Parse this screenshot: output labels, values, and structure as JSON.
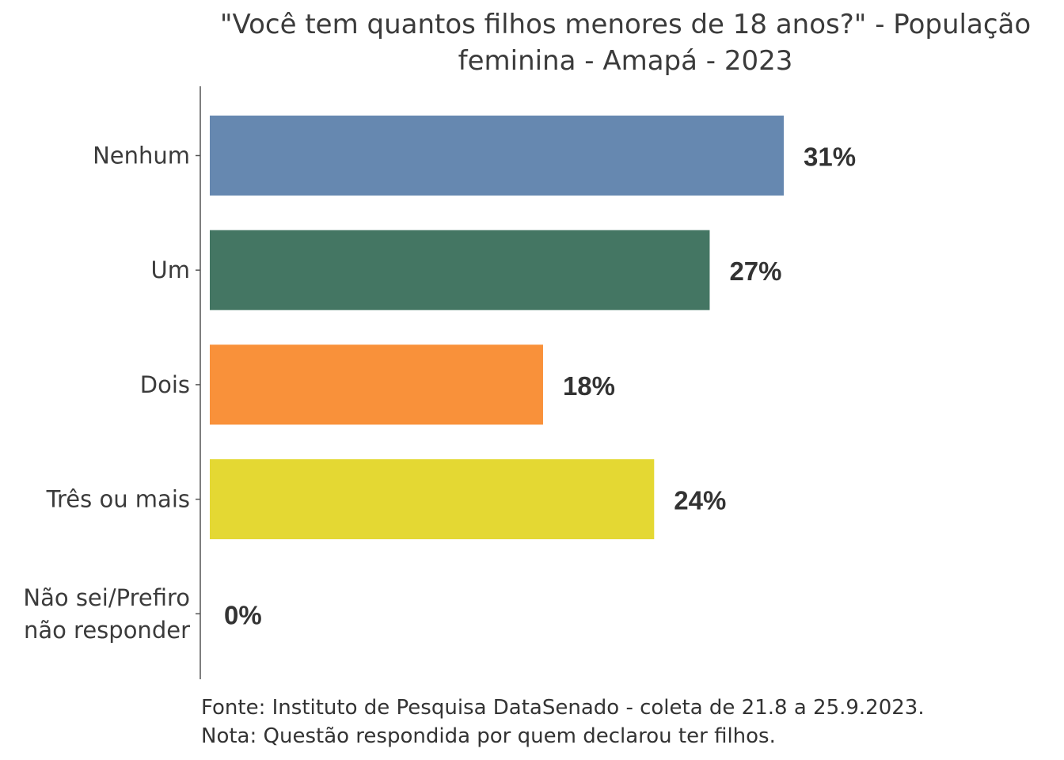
{
  "chart_data": {
    "type": "bar",
    "orientation": "horizontal",
    "title_lines": [
      "\"Você tem quantos filhos menores de 18 anos?\" - População",
      "feminina - Amapá - 2023"
    ],
    "categories": [
      [
        "Nenhum"
      ],
      [
        "Um"
      ],
      [
        "Dois"
      ],
      [
        "Três ou mais"
      ],
      [
        "Não sei/Prefiro",
        "não responder"
      ]
    ],
    "values": [
      31,
      27,
      18,
      24,
      0
    ],
    "value_labels": [
      "31%",
      "27%",
      "18%",
      "24%",
      "0%"
    ],
    "colors": [
      "#6688b0",
      "#447663",
      "#f9913a",
      "#e4d833",
      "#b84a6e"
    ],
    "xlim": [
      0,
      31
    ],
    "xlabel": "",
    "ylabel": "",
    "grid": false,
    "legend": "none"
  },
  "footnotes": {
    "source": "Fonte: Instituto de Pesquisa DataSenado - coleta de 21.8 a 25.9.2023.",
    "note": "Nota: Questão respondida por quem declarou ter filhos."
  }
}
